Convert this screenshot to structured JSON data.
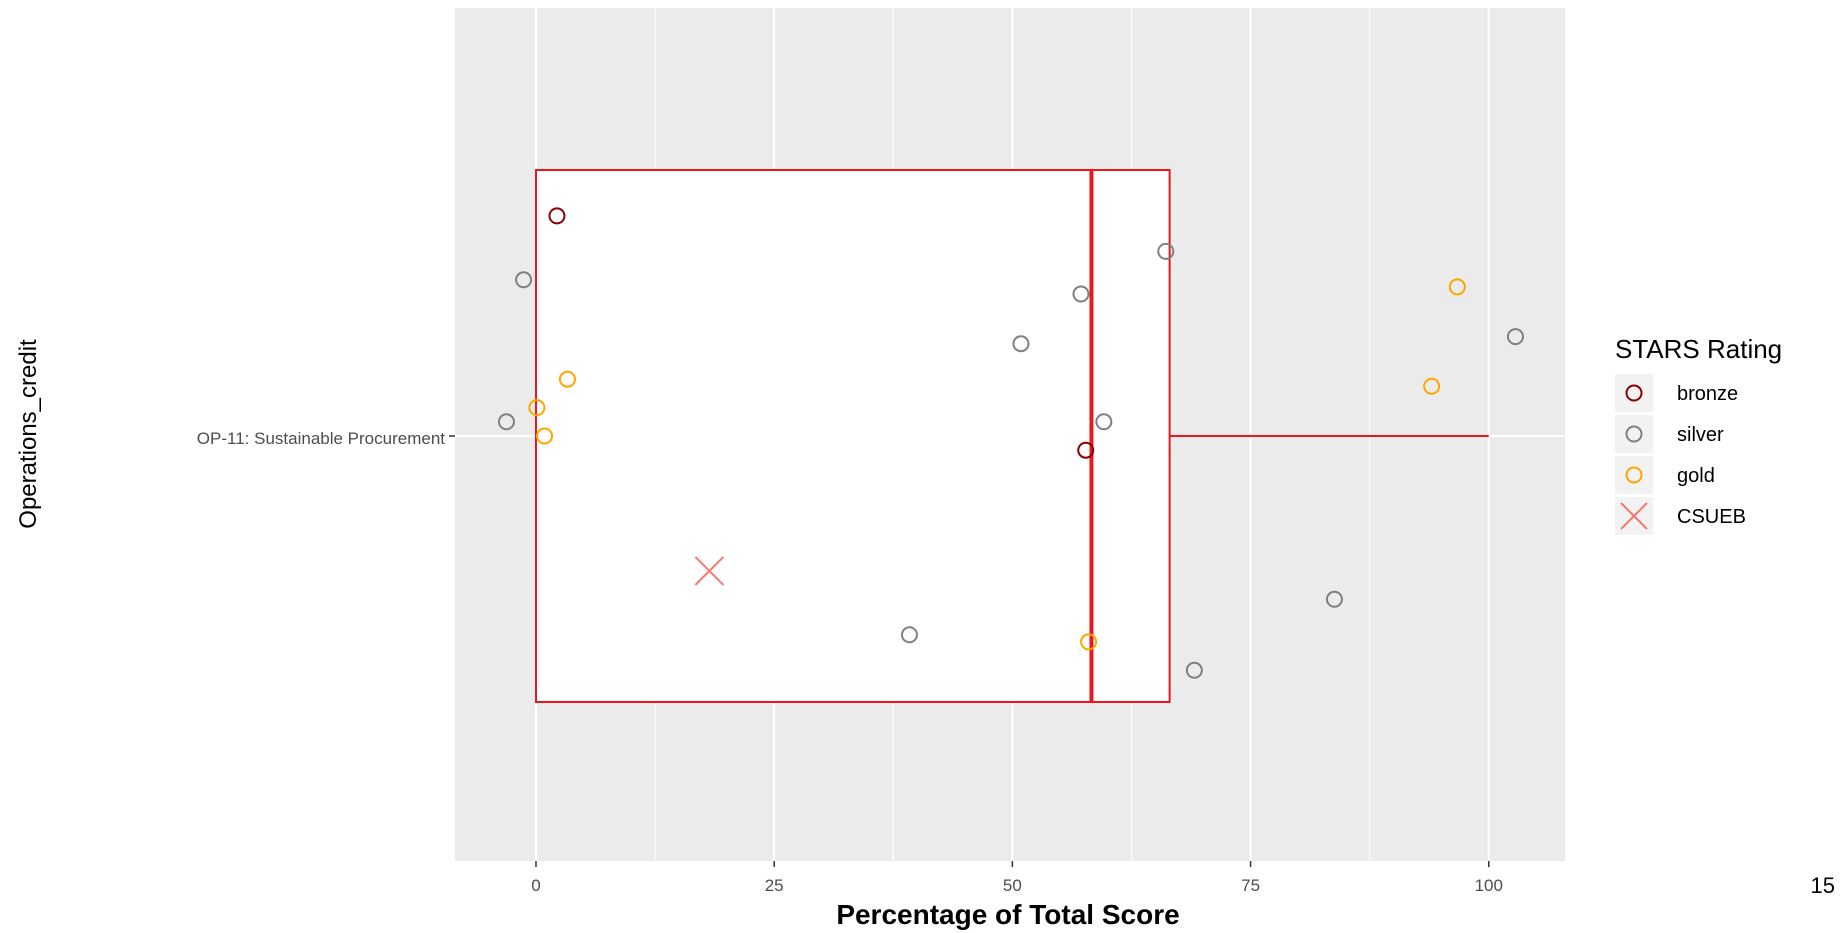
{
  "chart_data": {
    "type": "boxplot",
    "xlabel": "Percentage of Total Score",
    "ylabel": "Operations_credit",
    "xlim": [
      -8.5,
      108
    ],
    "xticks": [
      0,
      25,
      50,
      75,
      100
    ],
    "categories": [
      "OP-11: Sustainable Procurement"
    ],
    "grid": true,
    "legend_placement": "right",
    "box": {
      "q1": 0,
      "median": 58.3,
      "q3": 66.5,
      "whisker_low": 0,
      "whisker_high": 100,
      "color": "#e8191e"
    },
    "points": [
      {
        "rating": "bronze",
        "x": 2.2,
        "jitter": 0.31
      },
      {
        "rating": "silver",
        "x": -1.3,
        "jitter": 0.22
      },
      {
        "rating": "gold",
        "x": 3.3,
        "jitter": 0.08
      },
      {
        "rating": "gold",
        "x": 0.1,
        "jitter": 0.04
      },
      {
        "rating": "silver",
        "x": -3.1,
        "jitter": 0.02
      },
      {
        "rating": "gold",
        "x": 0.9,
        "jitter": 0.0
      },
      {
        "rating": "silver",
        "x": 66.1,
        "jitter": 0.26
      },
      {
        "rating": "silver",
        "x": 57.2,
        "jitter": 0.2
      },
      {
        "rating": "silver",
        "x": 50.9,
        "jitter": 0.13
      },
      {
        "rating": "silver",
        "x": 59.6,
        "jitter": 0.02
      },
      {
        "rating": "bronze",
        "x": 57.7,
        "jitter": -0.02
      },
      {
        "rating": "silver",
        "x": 39.2,
        "jitter": -0.28
      },
      {
        "rating": "gold",
        "x": 58.0,
        "jitter": -0.29
      },
      {
        "rating": "silver",
        "x": 69.1,
        "jitter": -0.33
      },
      {
        "rating": "gold",
        "x": 96.7,
        "jitter": 0.21
      },
      {
        "rating": "silver",
        "x": 102.8,
        "jitter": 0.14
      },
      {
        "rating": "gold",
        "x": 94.0,
        "jitter": 0.07
      },
      {
        "rating": "silver",
        "x": 83.8,
        "jitter": -0.23
      }
    ],
    "highlight": {
      "name": "CSUEB",
      "x": 18.2,
      "jitter": -0.19,
      "color": "#f8766d"
    },
    "legend": {
      "title": "STARS Rating",
      "entries": [
        {
          "label": "bronze",
          "color": "#8b0000",
          "shape": "circle"
        },
        {
          "label": "silver",
          "color": "#808080",
          "shape": "circle"
        },
        {
          "label": "gold",
          "color": "#ffa500",
          "shape": "circle"
        },
        {
          "label": "CSUEB",
          "color": "#f8766d",
          "shape": "cross"
        }
      ]
    },
    "colors": {
      "bronze": "#8b0000",
      "silver": "#808080",
      "gold": "#ffa500"
    }
  },
  "page_number": "15"
}
